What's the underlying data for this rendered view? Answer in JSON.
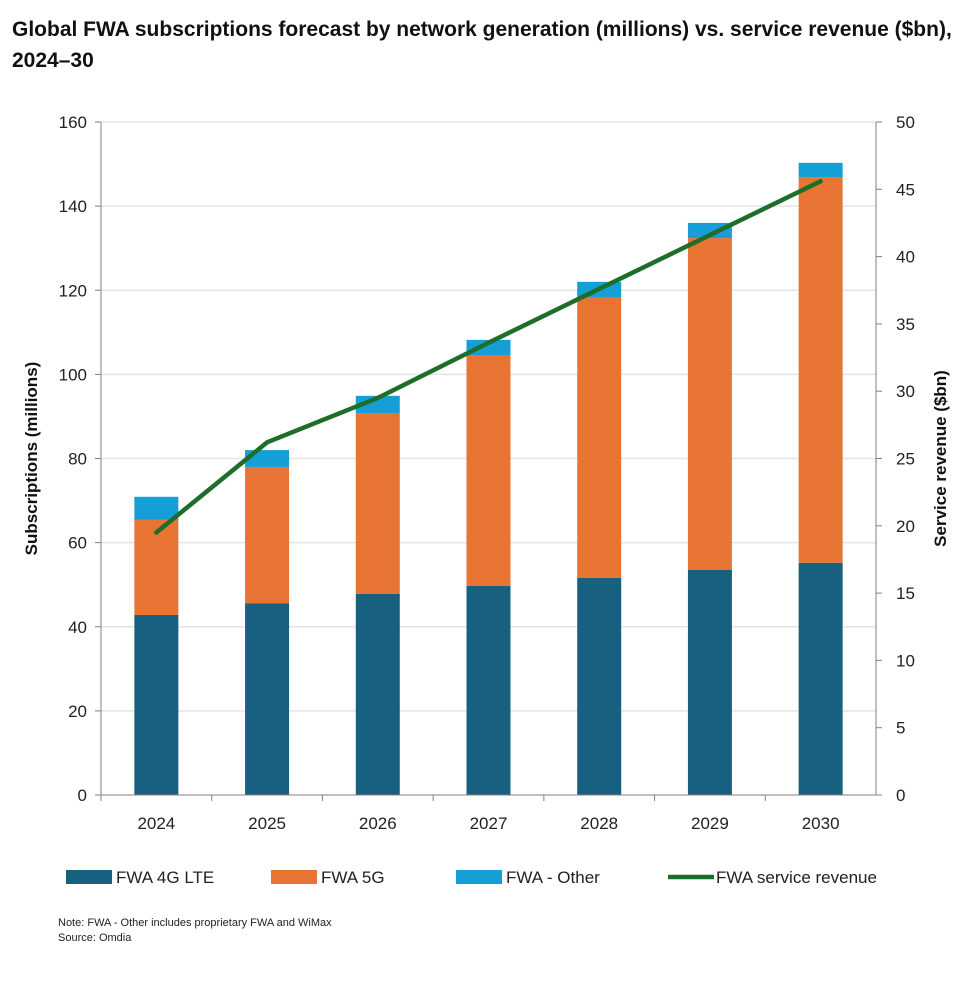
{
  "chart_data": {
    "type": "bar",
    "stacked": true,
    "title": "Global FWA subscriptions forecast by network generation (millions) vs. service revenue ($bn), 2024–30",
    "categories": [
      "2024",
      "2025",
      "2026",
      "2027",
      "2028",
      "2029",
      "2030"
    ],
    "ylabel": "Subscriptions (millions)",
    "y2label": "Service revenue ($bn)",
    "ylim": [
      0,
      160
    ],
    "yticks": [
      0,
      20,
      40,
      60,
      80,
      100,
      120,
      140,
      160
    ],
    "y2lim": [
      0,
      50
    ],
    "y2ticks": [
      0,
      5,
      10,
      15,
      20,
      25,
      30,
      35,
      40,
      45,
      50
    ],
    "grid": true,
    "legend_position": "bottom",
    "series": [
      {
        "name": "FWA 4G LTE",
        "type": "bar",
        "axis": "left",
        "color": "#17607f",
        "values": [
          42.8,
          45.6,
          47.8,
          49.7,
          51.6,
          53.5,
          55.2
        ]
      },
      {
        "name": "FWA 5G",
        "type": "bar",
        "axis": "left",
        "color": "#e87433",
        "values": [
          22.6,
          32.4,
          43.0,
          54.9,
          66.6,
          78.9,
          91.7
        ]
      },
      {
        "name": "FWA - Other",
        "type": "bar",
        "axis": "left",
        "color": "#159fd6",
        "values": [
          5.5,
          4.0,
          4.1,
          3.6,
          3.8,
          3.6,
          3.4
        ]
      },
      {
        "name": "FWA service revenue",
        "type": "line",
        "axis": "right",
        "color": "#1e6e2a",
        "values": [
          19.5,
          26.2,
          29.5,
          33.6,
          37.6,
          41.6,
          45.6
        ]
      }
    ]
  },
  "notes": {
    "note": "Note: FWA - Other includes proprietary FWA and WiMax",
    "source": "Source: Omdia"
  }
}
